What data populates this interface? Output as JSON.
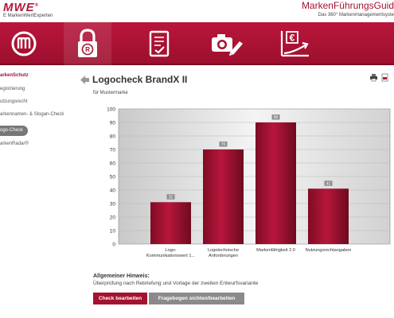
{
  "brand": {
    "logo": "MWE",
    "logo_mark": "®",
    "sub": "E MarkenWertExperten",
    "title": "MarkenFührungsGuid",
    "tagline": "Das 360° Markenmanagementsyste"
  },
  "nav": {
    "items": [
      {
        "icon": "m-logo-icon"
      },
      {
        "icon": "lock-registered-icon"
      },
      {
        "icon": "clipboard-check-icon"
      },
      {
        "icon": "camera-pencil-icon"
      },
      {
        "icon": "euro-growth-chart-icon"
      }
    ]
  },
  "sidebar": {
    "heading": "arkenSchutz",
    "items": [
      {
        "label": "egistrierung"
      },
      {
        "label": "utzungsrecht"
      },
      {
        "label": "arkennamen- & Slogan-Check"
      },
      {
        "label": "ogo-Check"
      },
      {
        "label": "arkenRadar®"
      }
    ]
  },
  "page": {
    "title": "Logocheck BrandX II",
    "subtitle": "für Mustermarke"
  },
  "chart_data": {
    "type": "bar",
    "categories": [
      "Logo-\nKommunikationswert 1...",
      "Logotechnische\nAnforderungen",
      "Markenfähigkeit 2.0",
      "Nutzungsrechtangaben"
    ],
    "values": [
      31,
      70,
      90,
      41
    ],
    "data_labels": [
      "31",
      "70",
      "90",
      "41"
    ],
    "yticks": [
      0,
      10,
      20,
      30,
      40,
      50,
      60,
      70,
      80,
      90,
      100
    ],
    "ylim": [
      0,
      100
    ],
    "grid": true,
    "bar_color": "#a3122f"
  },
  "hint": {
    "label": "Allgemeiner Hinweis:",
    "text": "Überprüfung nach Rebriefung und Vorlage der zweiten Entwurfsvariante"
  },
  "buttons": {
    "check": "Check bearbeiten",
    "questionnaire": "Fragebogen sichten/bearbeiten"
  }
}
